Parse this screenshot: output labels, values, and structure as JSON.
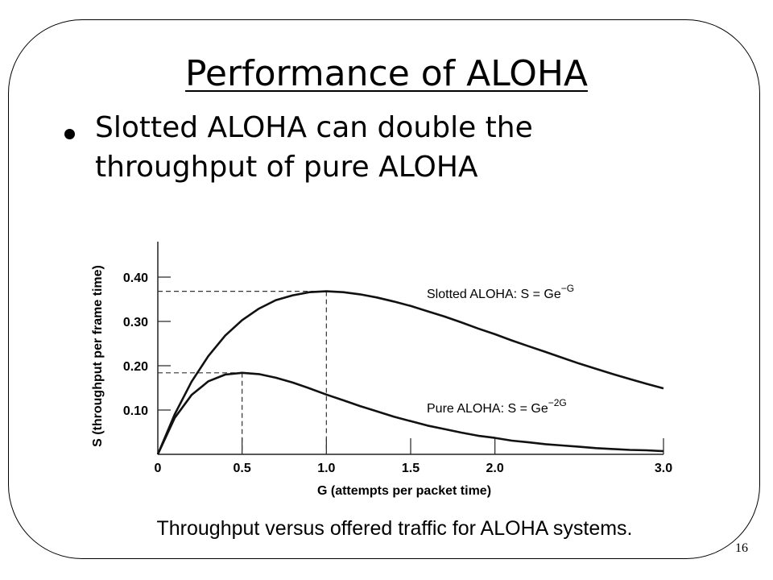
{
  "slide": {
    "title": "Performance of ALOHA",
    "bullets": [
      {
        "text": "Slotted ALOHA can double the throughput of pure ALOHA"
      }
    ],
    "caption": "Throughput versus offered traffic for ALOHA systems.",
    "page_number": "16"
  },
  "chart_data": {
    "type": "line",
    "title": "",
    "xlabel": "G (attempts per packet time)",
    "ylabel": "S (throughput per frame time)",
    "xlim": [
      0,
      3.0
    ],
    "ylim": [
      0,
      0.48
    ],
    "x_ticks": [
      0,
      0.5,
      1.0,
      1.5,
      2.0,
      3.0
    ],
    "x_tick_labels": [
      "0",
      "0.5",
      "1.0",
      "1.5",
      "2.0",
      "3.0"
    ],
    "y_ticks": [
      0.1,
      0.2,
      0.3,
      0.4
    ],
    "y_tick_labels": [
      "0.10",
      "0.20",
      "0.30",
      "0.40"
    ],
    "grid": false,
    "x": [
      0,
      0.1,
      0.2,
      0.3,
      0.4,
      0.5,
      0.6,
      0.7,
      0.8,
      0.9,
      1.0,
      1.1,
      1.2,
      1.3,
      1.4,
      1.5,
      1.6,
      1.7,
      1.8,
      1.9,
      2.0,
      2.1,
      2.2,
      2.3,
      2.4,
      2.5,
      2.6,
      2.7,
      2.8,
      2.9,
      3.0
    ],
    "series": [
      {
        "name": "Slotted ALOHA: S = Ge",
        "name_superscript": "−G",
        "color": "#111111",
        "values": [
          0,
          0.09,
          0.164,
          0.222,
          0.268,
          0.303,
          0.329,
          0.348,
          0.359,
          0.366,
          0.368,
          0.366,
          0.361,
          0.354,
          0.345,
          0.335,
          0.323,
          0.311,
          0.298,
          0.284,
          0.271,
          0.257,
          0.244,
          0.231,
          0.218,
          0.205,
          0.193,
          0.181,
          0.17,
          0.159,
          0.149
        ]
      },
      {
        "name": "Pure ALOHA: S = Ge",
        "name_superscript": "−2G",
        "color": "#111111",
        "values": [
          0,
          0.082,
          0.134,
          0.165,
          0.18,
          0.184,
          0.181,
          0.173,
          0.162,
          0.149,
          0.135,
          0.122,
          0.109,
          0.097,
          0.085,
          0.075,
          0.065,
          0.057,
          0.049,
          0.042,
          0.037,
          0.031,
          0.027,
          0.023,
          0.02,
          0.017,
          0.014,
          0.012,
          0.01,
          0.009,
          0.007
        ]
      }
    ],
    "annotations": [
      {
        "type": "dashed-guide",
        "x": 1.0,
        "y": 0.368
      },
      {
        "type": "dashed-guide",
        "x": 0.5,
        "y": 0.184
      }
    ]
  }
}
